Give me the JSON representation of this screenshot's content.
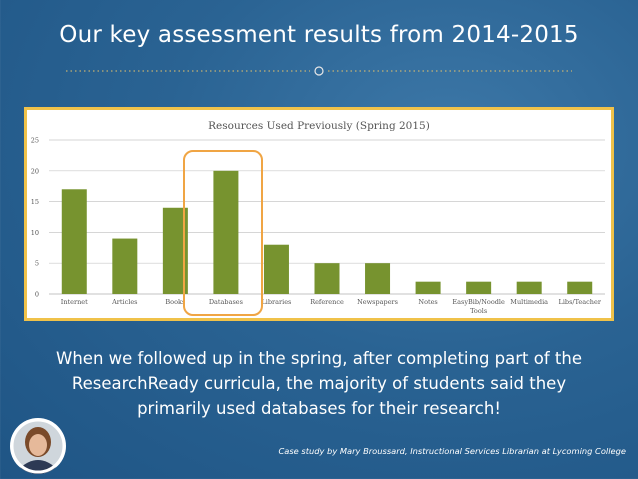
{
  "slide": {
    "title": "Our key assessment results from 2014-2015",
    "caption_lines": [
      "When we followed up in the spring, after completing part of the",
      "ResearchReady curricula, the majority of students said they",
      "primarily used databases for their research!"
    ],
    "credit": "Case study by Mary Broussard, Instructional Services Librarian at Lycoming College",
    "colors": {
      "bar": "#77932f",
      "panel_border": "#f0c24a",
      "highlight": "#f0a544"
    }
  },
  "chart_data": {
    "type": "bar",
    "title": "Resources Used Previously (Spring 2015)",
    "categories": [
      "Internet",
      "Articles",
      "Books",
      "Databases",
      "Libraries",
      "Reference",
      "Newspapers",
      "Notes",
      "EasyBib/Noodle Tools",
      "Multimedia",
      "Libs/Teacher"
    ],
    "values": [
      17,
      9,
      14,
      20,
      8,
      5,
      5,
      2,
      2,
      2,
      2
    ],
    "ylim": [
      0,
      25
    ],
    "yticks": [
      0,
      5,
      10,
      15,
      20,
      25
    ],
    "grid": true,
    "highlighted_category": "Databases"
  }
}
